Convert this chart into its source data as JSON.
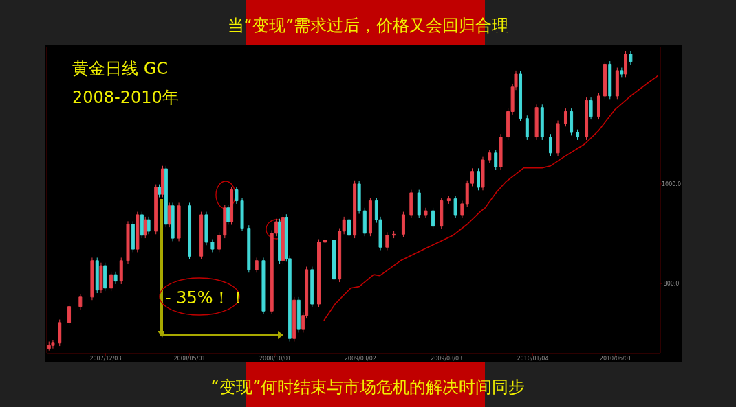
{
  "chart_data": {
    "type": "candlestick",
    "title": "当“变现”需求过后，价格又会回归合理",
    "annotations": [
      "黄金日线 GC",
      "2008-2010年",
      "- 35%！！",
      "“变现”何时结束与市场危机的解决时间同步"
    ],
    "xlim": [
      "2007-08-20",
      "2010-08-20"
    ],
    "ylim": [
      660,
      1275
    ],
    "xticks": [
      {
        "value": "2007-12-03",
        "label": "2007/12/03"
      },
      {
        "value": "2008-05-01",
        "label": "2008/05/01"
      },
      {
        "value": "2008-10-01",
        "label": "2008/10/01"
      },
      {
        "value": "2009-03-02",
        "label": "2009/03/02"
      },
      {
        "value": "2009-08-03",
        "label": "2009/08/03"
      },
      {
        "value": "2010-01-04",
        "label": "2010/01/04"
      },
      {
        "value": "2010-06-01",
        "label": "2010/06/01"
      }
    ],
    "yticks": [
      {
        "value": 800,
        "label": "800.0"
      },
      {
        "value": 1000,
        "label": "1000.0"
      }
    ],
    "x": [
      "2007-08-24",
      "2007-08-31",
      "2007-09-12",
      "2007-09-29",
      "2007-10-19",
      "2007-11-09",
      "2007-11-18",
      "2007-11-25",
      "2007-12-02",
      "2007-12-13",
      "2007-12-21",
      "2007-12-31",
      "2008-01-12",
      "2008-01-21",
      "2008-01-29",
      "2008-02-06",
      "2008-02-12",
      "2008-02-18",
      "2008-03-02",
      "2008-03-08",
      "2008-03-14",
      "2008-03-20",
      "2008-03-26",
      "2008-04-01",
      "2008-04-12",
      "2008-05-01",
      "2008-05-22",
      "2008-05-31",
      "2008-06-11",
      "2008-06-23",
      "2008-07-03",
      "2008-07-09",
      "2008-07-15",
      "2008-07-24",
      "2008-08-03",
      "2008-08-15",
      "2008-08-29",
      "2008-09-10",
      "2008-09-25",
      "2008-10-03",
      "2008-10-09",
      "2008-10-15",
      "2008-10-21",
      "2008-10-27",
      "2008-11-04",
      "2008-11-12",
      "2008-11-20",
      "2008-11-26",
      "2008-12-06",
      "2008-12-18",
      "2008-12-29",
      "2009-01-14",
      "2009-01-24",
      "2009-02-01",
      "2009-02-10",
      "2009-02-20",
      "2009-02-28",
      "2009-03-10",
      "2009-03-20",
      "2009-03-31",
      "2009-04-07",
      "2009-04-19",
      "2009-05-01",
      "2009-05-18",
      "2009-06-01",
      "2009-06-15",
      "2009-06-27",
      "2009-07-10",
      "2009-07-25",
      "2009-08-07",
      "2009-08-19",
      "2009-08-31",
      "2009-09-09",
      "2009-09-18",
      "2009-09-29",
      "2009-10-07",
      "2009-10-19",
      "2009-10-30",
      "2009-11-08",
      "2009-11-21",
      "2009-11-29",
      "2009-12-05",
      "2009-12-13",
      "2009-12-25",
      "2010-01-11",
      "2010-01-21",
      "2010-02-05",
      "2010-02-18",
      "2010-03-04",
      "2010-03-14",
      "2010-03-25",
      "2010-04-10",
      "2010-04-18",
      "2010-05-02",
      "2010-05-13",
      "2010-05-22",
      "2010-06-04",
      "2010-06-12",
      "2010-06-19",
      "2010-06-28"
    ],
    "ohlc": [
      [
        670,
        684,
        666,
        676
      ],
      [
        676,
        687,
        670,
        681
      ],
      [
        681,
        728,
        675,
        722
      ],
      [
        722,
        760,
        716,
        754
      ],
      [
        754,
        779,
        748,
        773
      ],
      [
        773,
        852,
        767,
        846
      ],
      [
        846,
        852,
        781,
        787
      ],
      [
        787,
        842,
        781,
        836
      ],
      [
        836,
        842,
        785,
        791
      ],
      [
        791,
        824,
        785,
        818
      ],
      [
        818,
        824,
        799,
        805
      ],
      [
        805,
        852,
        799,
        846
      ],
      [
        846,
        925,
        840,
        919
      ],
      [
        919,
        925,
        863,
        869
      ],
      [
        869,
        944,
        863,
        938
      ],
      [
        938,
        944,
        891,
        897
      ],
      [
        897,
        934,
        891,
        928
      ],
      [
        928,
        934,
        899,
        905
      ],
      [
        905,
        999,
        899,
        993
      ],
      [
        993,
        999,
        973,
        979
      ],
      [
        979,
        1036,
        973,
        1030
      ],
      [
        1030,
        1036,
        913,
        919
      ],
      [
        919,
        962,
        913,
        956
      ],
      [
        956,
        962,
        885,
        891
      ],
      [
        891,
        962,
        885,
        956
      ],
      [
        956,
        962,
        849,
        855
      ],
      [
        855,
        944,
        849,
        938
      ],
      [
        938,
        944,
        877,
        883
      ],
      [
        883,
        889,
        863,
        869
      ],
      [
        869,
        903,
        863,
        897
      ],
      [
        897,
        958,
        891,
        952
      ],
      [
        952,
        958,
        918,
        924
      ],
      [
        924,
        993,
        918,
        988
      ],
      [
        988,
        994,
        960,
        966
      ],
      [
        966,
        972,
        905,
        911
      ],
      [
        911,
        917,
        822,
        828
      ],
      [
        828,
        852,
        822,
        846
      ],
      [
        846,
        852,
        739,
        745
      ],
      [
        745,
        907,
        739,
        901
      ],
      [
        901,
        930,
        895,
        924
      ],
      [
        924,
        930,
        840,
        846
      ],
      [
        846,
        939,
        840,
        933
      ],
      [
        933,
        939,
        844,
        850
      ],
      [
        850,
        856,
        684,
        690
      ],
      [
        690,
        773,
        684,
        767
      ],
      [
        767,
        773,
        702,
        708
      ],
      [
        708,
        742,
        702,
        736
      ],
      [
        736,
        834,
        730,
        828
      ],
      [
        828,
        834,
        753,
        759
      ],
      [
        759,
        889,
        753,
        883
      ],
      [
        883,
        893,
        877,
        887
      ],
      [
        887,
        893,
        803,
        809
      ],
      [
        809,
        911,
        803,
        905
      ],
      [
        905,
        934,
        899,
        928
      ],
      [
        928,
        934,
        891,
        897
      ],
      [
        897,
        1007,
        891,
        1000
      ],
      [
        1000,
        1006,
        940,
        946
      ],
      [
        946,
        952,
        895,
        901
      ],
      [
        901,
        972,
        895,
        966
      ],
      [
        966,
        972,
        922,
        928
      ],
      [
        928,
        934,
        867,
        873
      ],
      [
        873,
        903,
        867,
        897
      ],
      [
        897,
        905,
        891,
        899
      ],
      [
        899,
        944,
        893,
        938
      ],
      [
        938,
        988,
        932,
        982
      ],
      [
        982,
        988,
        932,
        938
      ],
      [
        938,
        952,
        932,
        946
      ],
      [
        946,
        952,
        909,
        915
      ],
      [
        915,
        972,
        909,
        966
      ],
      [
        966,
        976,
        960,
        970
      ],
      [
        970,
        976,
        932,
        938
      ],
      [
        938,
        966,
        932,
        960
      ],
      [
        960,
        1007,
        954,
        1001
      ],
      [
        1001,
        1031,
        995,
        1025
      ],
      [
        1025,
        1031,
        987,
        993
      ],
      [
        993,
        1054,
        987,
        1048
      ],
      [
        1048,
        1068,
        1042,
        1062
      ],
      [
        1062,
        1068,
        1028,
        1034
      ],
      [
        1034,
        1100,
        1028,
        1094
      ],
      [
        1094,
        1151,
        1088,
        1145
      ],
      [
        1145,
        1200,
        1139,
        1194
      ],
      [
        1194,
        1227,
        1188,
        1220
      ],
      [
        1220,
        1226,
        1125,
        1131
      ],
      [
        1131,
        1137,
        1088,
        1094
      ],
      [
        1094,
        1159,
        1088,
        1153
      ],
      [
        1153,
        1159,
        1088,
        1094
      ],
      [
        1094,
        1100,
        1056,
        1062
      ],
      [
        1062,
        1127,
        1056,
        1121
      ],
      [
        1121,
        1151,
        1115,
        1145
      ],
      [
        1145,
        1151,
        1097,
        1103
      ],
      [
        1103,
        1109,
        1088,
        1094
      ],
      [
        1094,
        1173,
        1088,
        1167
      ],
      [
        1167,
        1173,
        1129,
        1135
      ],
      [
        1135,
        1182,
        1129,
        1176
      ],
      [
        1176,
        1245,
        1170,
        1240
      ],
      [
        1240,
        1246,
        1170,
        1176
      ],
      [
        1176,
        1233,
        1170,
        1227
      ],
      [
        1227,
        1233,
        1214,
        1220
      ],
      [
        1220,
        1266,
        1214,
        1260
      ],
      [
        1260,
        1266,
        1239,
        1245
      ]
    ],
    "colors": [
      "#e8404a",
      "#e8404a",
      "#e8404a",
      "#e8404a",
      "#e8404a",
      "#e8404a",
      "#40d8d8",
      "#e8404a",
      "#40d8d8",
      "#e8404a",
      "#40d8d8",
      "#e8404a",
      "#e8404a",
      "#40d8d8",
      "#e8404a",
      "#40d8d8",
      "#e8404a",
      "#40d8d8",
      "#e8404a",
      "#40d8d8",
      "#e8404a",
      "#40d8d8",
      "#e8404a",
      "#40d8d8",
      "#e8404a",
      "#40d8d8",
      "#e8404a",
      "#40d8d8",
      "#40d8d8",
      "#e8404a",
      "#e8404a",
      "#40d8d8",
      "#e8404a",
      "#40d8d8",
      "#40d8d8",
      "#40d8d8",
      "#e8404a",
      "#40d8d8",
      "#e8404a",
      "#e8404a",
      "#40d8d8",
      "#e8404a",
      "#40d8d8",
      "#40d8d8",
      "#e8404a",
      "#40d8d8",
      "#e8404a",
      "#e8404a",
      "#40d8d8",
      "#e8404a",
      "#e8404a",
      "#40d8d8",
      "#e8404a",
      "#e8404a",
      "#40d8d8",
      "#e8404a",
      "#40d8d8",
      "#40d8d8",
      "#e8404a",
      "#40d8d8",
      "#40d8d8",
      "#e8404a",
      "#e8404a",
      "#e8404a",
      "#e8404a",
      "#40d8d8",
      "#e8404a",
      "#40d8d8",
      "#e8404a",
      "#e8404a",
      "#40d8d8",
      "#e8404a",
      "#e8404a",
      "#e8404a",
      "#40d8d8",
      "#e8404a",
      "#e8404a",
      "#40d8d8",
      "#e8404a",
      "#e8404a",
      "#e8404a",
      "#e8404a",
      "#40d8d8",
      "#40d8d8",
      "#e8404a",
      "#40d8d8",
      "#40d8d8",
      "#e8404a",
      "#e8404a",
      "#40d8d8",
      "#40d8d8",
      "#e8404a",
      "#40d8d8",
      "#e8404a",
      "#e8404a",
      "#40d8d8",
      "#e8404a",
      "#40d8d8",
      "#e8404a",
      "#40d8d8"
    ],
    "series": [
      {
        "type": "line",
        "color": "#c00000",
        "x": [
          "2008-12-27",
          "2009-01-16",
          "2009-02-13",
          "2009-02-28",
          "2009-03-26",
          "2009-04-06",
          "2009-05-13",
          "2009-06-24",
          "2009-08-15",
          "2009-09-09",
          "2009-10-03",
          "2009-10-11",
          "2009-10-31",
          "2009-11-17",
          "2009-12-19",
          "2010-01-21",
          "2010-02-05",
          "2010-02-26",
          "2010-04-07",
          "2010-05-02",
          "2010-05-31",
          "2010-06-28",
          "2010-07-26",
          "2010-08-16"
        ],
        "values": [
          726,
          759,
          791,
          794,
          818,
          816,
          846,
          869,
          897,
          919,
          945,
          952,
          983,
          1004,
          1032,
          1032,
          1036,
          1052,
          1080,
          1107,
          1149,
          1176,
          1200,
          1217
        ]
      }
    ]
  }
}
